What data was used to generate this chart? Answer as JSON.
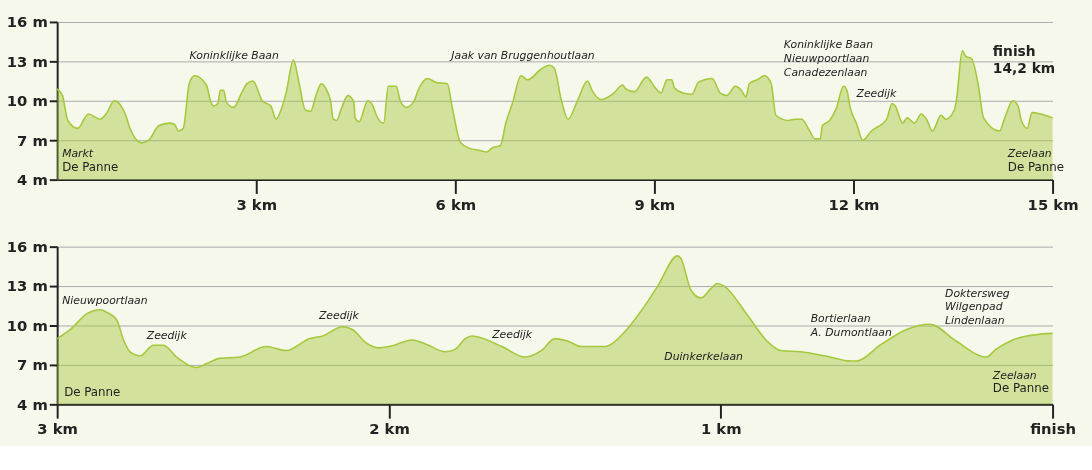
{
  "chart_data": [
    {
      "type": "area",
      "grid": "y",
      "line_style": "solid",
      "marker": "none",
      "xlim": [
        0,
        15
      ],
      "xticks": [
        {
          "value": 3,
          "label": "3 km"
        },
        {
          "value": 6,
          "label": "6 km"
        },
        {
          "value": 9,
          "label": "9 km"
        },
        {
          "value": 12,
          "label": "12 km"
        },
        {
          "value": 15,
          "label": "15 km"
        }
      ],
      "ylim": [
        4,
        16
      ],
      "yticks": [
        {
          "value": 4,
          "label": "4 m"
        },
        {
          "value": 7,
          "label": "7 m"
        },
        {
          "value": 10,
          "label": "10 m"
        },
        {
          "value": 13,
          "label": "13 m"
        },
        {
          "value": 16,
          "label": "16 m"
        }
      ],
      "series": [
        {
          "color": "#a5c83c",
          "x": [
            0,
            0.08,
            0.16,
            0.31,
            0.47,
            0.65,
            0.75,
            0.86,
            1.04,
            1.09,
            1.27,
            1.38,
            1.53,
            1.69,
            1.77,
            1.83,
            1.9,
            1.99,
            2.07,
            2.25,
            2.31,
            2.36,
            2.42,
            2.46,
            2.51,
            2.55,
            2.66,
            2.78,
            2.86,
            2.95,
            3.09,
            3.22,
            3.3,
            3.38,
            3.45,
            3.56,
            3.64,
            3.74,
            3.82,
            3.9,
            3.98,
            4.08,
            4.12,
            4.16,
            4.21,
            4.29,
            4.38,
            4.47,
            4.49,
            4.55,
            4.68,
            4.76,
            4.81,
            4.92,
            4.99,
            5.11,
            5.17,
            5.26,
            5.38,
            5.44,
            5.58,
            5.71,
            5.88,
            5.95,
            6.08,
            6.21,
            6.39,
            6.47,
            6.55,
            6.68,
            6.76,
            6.86,
            6.99,
            7.09,
            7.29,
            7.42,
            7.49,
            7.6,
            7.7,
            7.84,
            7.99,
            8.07,
            8.2,
            8.39,
            8.52,
            8.57,
            8.7,
            8.88,
            9.01,
            9.1,
            9.19,
            9.26,
            9.3,
            9.43,
            9.57,
            9.66,
            9.87,
            9.99,
            10.09,
            10.22,
            10.31,
            10.38,
            10.43,
            10.55,
            10.66,
            10.76,
            10.83,
            11.02,
            11.12,
            11.22,
            11.33,
            11.42,
            11.5,
            11.53,
            11.64,
            11.74,
            11.85,
            11.9,
            11.95,
            12.05,
            12.14,
            12.27,
            12.5,
            12.58,
            12.63,
            12.74,
            12.81,
            12.92,
            13.02,
            13.1,
            13.19,
            13.32,
            13.39,
            13.52,
            13.55,
            13.64,
            13.69,
            13.78,
            13.88,
            13.96,
            14.2,
            14.28,
            14.4,
            14.48,
            14.53,
            14.62,
            14.69,
            14.82,
            15
          ],
          "values": [
            10.9,
            10.4,
            8.5,
            7.9,
            9.0,
            8.6,
            9.1,
            10.0,
            8.8,
            8.0,
            6.8,
            7.0,
            8.1,
            8.3,
            8.2,
            7.7,
            7.9,
            11.3,
            11.9,
            11.2,
            10.0,
            9.6,
            9.8,
            10.8,
            10.8,
            9.9,
            9.5,
            10.6,
            11.3,
            11.5,
            10.0,
            9.6,
            8.6,
            9.4,
            10.6,
            13.1,
            11.5,
            9.3,
            9.2,
            10.4,
            11.3,
            10.6,
            10.0,
            8.6,
            8.5,
            9.5,
            10.4,
            9.9,
            8.7,
            8.4,
            10.0,
            9.6,
            8.9,
            8.3,
            11.1,
            11.1,
            10.0,
            9.5,
            10.0,
            10.8,
            11.7,
            11.4,
            11.3,
            9.6,
            6.8,
            6.4,
            6.2,
            6.1,
            6.4,
            6.6,
            8.3,
            9.8,
            11.9,
            11.6,
            12.4,
            12.7,
            12.5,
            10.0,
            8.6,
            10.0,
            11.5,
            10.7,
            10.1,
            10.6,
            11.2,
            10.9,
            10.7,
            11.8,
            11.0,
            10.6,
            11.6,
            11.6,
            11.0,
            10.6,
            10.5,
            11.4,
            11.7,
            10.6,
            10.4,
            11.1,
            10.8,
            10.3,
            11.3,
            11.6,
            11.9,
            11.3,
            8.9,
            8.5,
            8.6,
            8.6,
            7.8,
            7.1,
            7.1,
            8.1,
            8.5,
            9.4,
            11.1,
            10.8,
            9.5,
            8.2,
            7.0,
            7.7,
            8.6,
            9.8,
            9.6,
            8.3,
            8.7,
            8.3,
            9.0,
            8.6,
            7.7,
            8.9,
            8.6,
            9.3,
            10.0,
            13.8,
            13.4,
            13.2,
            11.2,
            8.7,
            7.7,
            8.7,
            10.0,
            9.6,
            8.5,
            7.9,
            9.1,
            9.0,
            8.7
          ]
        }
      ],
      "annotations": [
        "Markt\nDe Panne",
        "Koninklijke Baan",
        "Jaak van Bruggenhoutlaan",
        "Koninklijke Baan\nNieuwpoortlaan\nCanadezenlaan",
        "Zeedijk",
        "finish\n14,2 km",
        "Zeelaan\nDe Panne"
      ]
    },
    {
      "type": "area",
      "grid": "y",
      "line_style": "solid",
      "marker": "none",
      "xlim": [
        3,
        0
      ],
      "xticks": [
        {
          "value": 3,
          "label": "3 km"
        },
        {
          "value": 2,
          "label": "2 km"
        },
        {
          "value": 1,
          "label": "1 km"
        },
        {
          "value": 0,
          "label": "finish"
        }
      ],
      "ylim": [
        4,
        16
      ],
      "yticks": [
        {
          "value": 4,
          "label": "4 m"
        },
        {
          "value": 7,
          "label": "7 m"
        },
        {
          "value": 10,
          "label": "10 m"
        },
        {
          "value": 13,
          "label": "13 m"
        },
        {
          "value": 16,
          "label": "16 m"
        }
      ],
      "series": [
        {
          "color": "#a5c83c",
          "x": [
            3.0,
            2.96,
            2.91,
            2.87,
            2.85,
            2.82,
            2.8,
            2.78,
            2.75,
            2.71,
            2.68,
            2.64,
            2.58,
            2.55,
            2.51,
            2.45,
            2.37,
            2.31,
            2.24,
            2.2,
            2.14,
            2.11,
            2.07,
            2.03,
            2.0,
            1.93,
            1.89,
            1.83,
            1.8,
            1.77,
            1.75,
            1.66,
            1.59,
            1.57,
            1.54,
            1.5,
            1.46,
            1.42,
            1.35,
            1.29,
            1.24,
            1.19,
            1.13,
            1.12,
            1.09,
            1.06,
            1.03,
            1.01,
            0.99,
            0.92,
            0.86,
            0.82,
            0.76,
            0.67,
            0.61,
            0.59,
            0.52,
            0.44,
            0.37,
            0.29,
            0.2,
            0.17,
            0.12,
            0.05,
            0.0
          ],
          "values": [
            9.0,
            9.7,
            10.9,
            11.2,
            11.0,
            10.4,
            8.9,
            8.0,
            7.7,
            8.5,
            8.5,
            7.6,
            6.8,
            7.1,
            7.5,
            7.6,
            8.4,
            8.1,
            9.0,
            9.2,
            9.9,
            9.7,
            8.7,
            8.3,
            8.4,
            8.9,
            8.6,
            8.0,
            8.2,
            9.0,
            9.2,
            8.4,
            7.6,
            7.7,
            8.1,
            9.0,
            8.8,
            8.4,
            8.4,
            9.5,
            11.1,
            13.0,
            15.3,
            15.1,
            12.7,
            12.1,
            12.8,
            13.2,
            13.0,
            10.8,
            8.8,
            8.1,
            8.0,
            7.6,
            7.3,
            7.3,
            8.5,
            9.7,
            10.1,
            8.8,
            7.6,
            8.2,
            8.9,
            9.3,
            9.4
          ]
        }
      ],
      "annotations": [
        "Nieuwpoortlaan",
        "Zeedijk",
        "Zeedijk",
        "Zeedijk",
        "Duinkerkelaan",
        "Bortierlaan\nA. Dumontlaan",
        "Doktersweg\nWilgenpad\nLindenlaan",
        "De Panne",
        "Zeelaan\nDe Panne"
      ]
    }
  ]
}
